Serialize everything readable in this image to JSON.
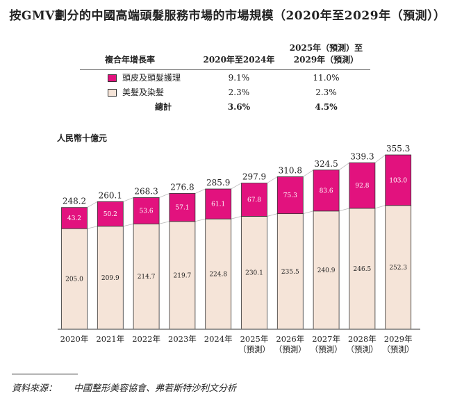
{
  "title": "按GMV劃分的中國高端頭髮服務市場的市場規模（2020年至2029年（預測））",
  "cagr_table": {
    "header": [
      "複合年增長率",
      "2020年至2024年",
      "2025年（預測）至\n2029年（預測）"
    ],
    "rows": [
      {
        "label": "頭皮及頭髮護理",
        "v1": "9.1%",
        "v2": "11.0%"
      },
      {
        "label": "美髮及染髮",
        "v1": "2.3%",
        "v2": "2.3%"
      },
      {
        "label": "總計",
        "v1": "3.6%",
        "v2": "4.5%"
      }
    ]
  },
  "colors": {
    "scalp": "#e2127e",
    "styling": "#f5e4d8"
  },
  "chart_data": {
    "type": "bar",
    "stacked": true,
    "ylabel": "人民幣十億元",
    "categories": [
      "2020年",
      "2021年",
      "2022年",
      "2023年",
      "2024年",
      "2025年\n（預測）",
      "2026年\n（預測）",
      "2027年\n（預測）",
      "2028年\n（預測）",
      "2029年\n（預測）"
    ],
    "series": [
      {
        "name": "美髮及染髮",
        "values": [
          205.0,
          209.9,
          214.7,
          219.7,
          224.8,
          230.1,
          235.5,
          240.9,
          246.5,
          252.3
        ]
      },
      {
        "name": "頭皮及頭髮護理",
        "values": [
          43.2,
          50.2,
          53.6,
          57.1,
          61.1,
          67.8,
          75.3,
          83.6,
          92.8,
          103.0
        ]
      }
    ],
    "totals": [
      248.2,
      260.1,
      268.3,
      276.8,
      285.9,
      297.9,
      310.8,
      324.5,
      339.3,
      355.3
    ],
    "ylim": [
      0,
      355.3
    ]
  },
  "source": {
    "label": "資料來源：",
    "text": "中國整形美容協會、弗若斯特沙利文分析"
  }
}
